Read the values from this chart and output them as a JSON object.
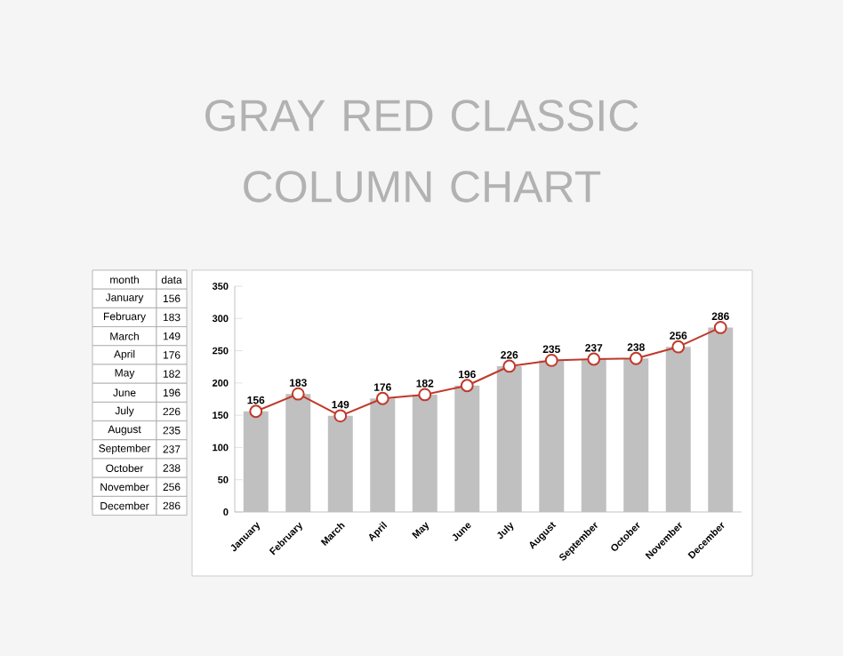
{
  "chart_data": {
    "type": "bar",
    "title": "GRAY RED CLASSIC COLUMN CHART",
    "categories": [
      "January",
      "February",
      "March",
      "April",
      "May",
      "June",
      "July",
      "August",
      "September",
      "October",
      "November",
      "December"
    ],
    "series": [
      {
        "color": "#c0c0c0",
        "values": [
          156,
          183,
          149,
          176,
          182,
          196,
          226,
          235,
          237,
          238,
          256,
          286
        ]
      },
      {
        "type": "line",
        "color": "#c0392b",
        "values": [
          156,
          183,
          149,
          176,
          182,
          196,
          226,
          235,
          237,
          238,
          256,
          286
        ],
        "value_labels": [
          "156",
          "183",
          "149",
          "176",
          "182",
          "196",
          "226",
          "235",
          "237",
          "238",
          "256",
          "286"
        ]
      }
    ],
    "ylim": [
      0,
      350
    ],
    "yticks": [
      0,
      50,
      100,
      150,
      200,
      250,
      300,
      350
    ],
    "marker": "circle",
    "line_style": "solid",
    "annotations": [
      "month",
      "data"
    ]
  }
}
